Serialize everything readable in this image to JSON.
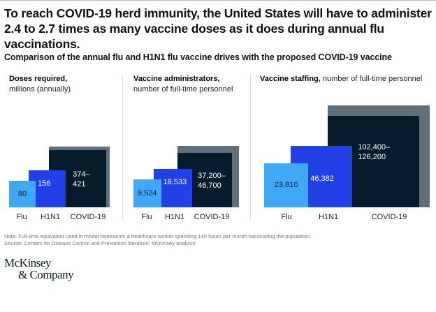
{
  "title_line1": "To reach COVID-19 herd immunity, the United States will have to administer",
  "title_line2": "2.4 to 2.7 times as many vaccine doses as it does during annual flu vaccinations.",
  "subtitle": "Comparison of the annual flu and H1N1 flu vaccine drives with the proposed COVID-19 vaccine",
  "colors": {
    "flu": "#3fa9f5",
    "h1n1": "#2140e8",
    "covid_low": "#051c2c",
    "covid_high": "#5f707c"
  },
  "chart_data": [
    {
      "type": "bar",
      "encoding": "area-proportional squares",
      "title_bold": "Doses required,",
      "title_rest": "millions (annually)",
      "categories": [
        "Flu",
        "H1N1",
        "COVID-19"
      ],
      "values": [
        80,
        156,
        [
          374,
          421
        ]
      ],
      "data_labels": [
        "80",
        "156",
        "374–\n421"
      ]
    },
    {
      "type": "bar",
      "encoding": "area-proportional squares",
      "title_bold": "Vaccine administrators,",
      "title_rest": "number of full-time personnel",
      "categories": [
        "Flu",
        "H1N1",
        "COVID-19"
      ],
      "values": [
        9524,
        18533,
        [
          37200,
          46700
        ]
      ],
      "data_labels": [
        "9,524",
        "18,533",
        "37,200–\n46,700"
      ]
    },
    {
      "type": "bar",
      "encoding": "area-proportional squares",
      "title_bold": "Vaccine staffing,",
      "title_rest": "number of full-time personnel",
      "categories": [
        "Flu",
        "H1N1",
        "COVID-19"
      ],
      "values": [
        23810,
        46382,
        [
          102400,
          126200
        ]
      ],
      "data_labels": [
        "23,810",
        "46,382",
        "102,400–\n126,200"
      ]
    }
  ],
  "note": "Note: Full-time equivalent used in model represents a healthcare worker spending 140 hours per month vaccinating the population.",
  "source": "Source: Centers for Disease Control and Prevention literature; McKinsey analysis",
  "logo": {
    "line1": "McKinsey",
    "line2": "& Company"
  }
}
